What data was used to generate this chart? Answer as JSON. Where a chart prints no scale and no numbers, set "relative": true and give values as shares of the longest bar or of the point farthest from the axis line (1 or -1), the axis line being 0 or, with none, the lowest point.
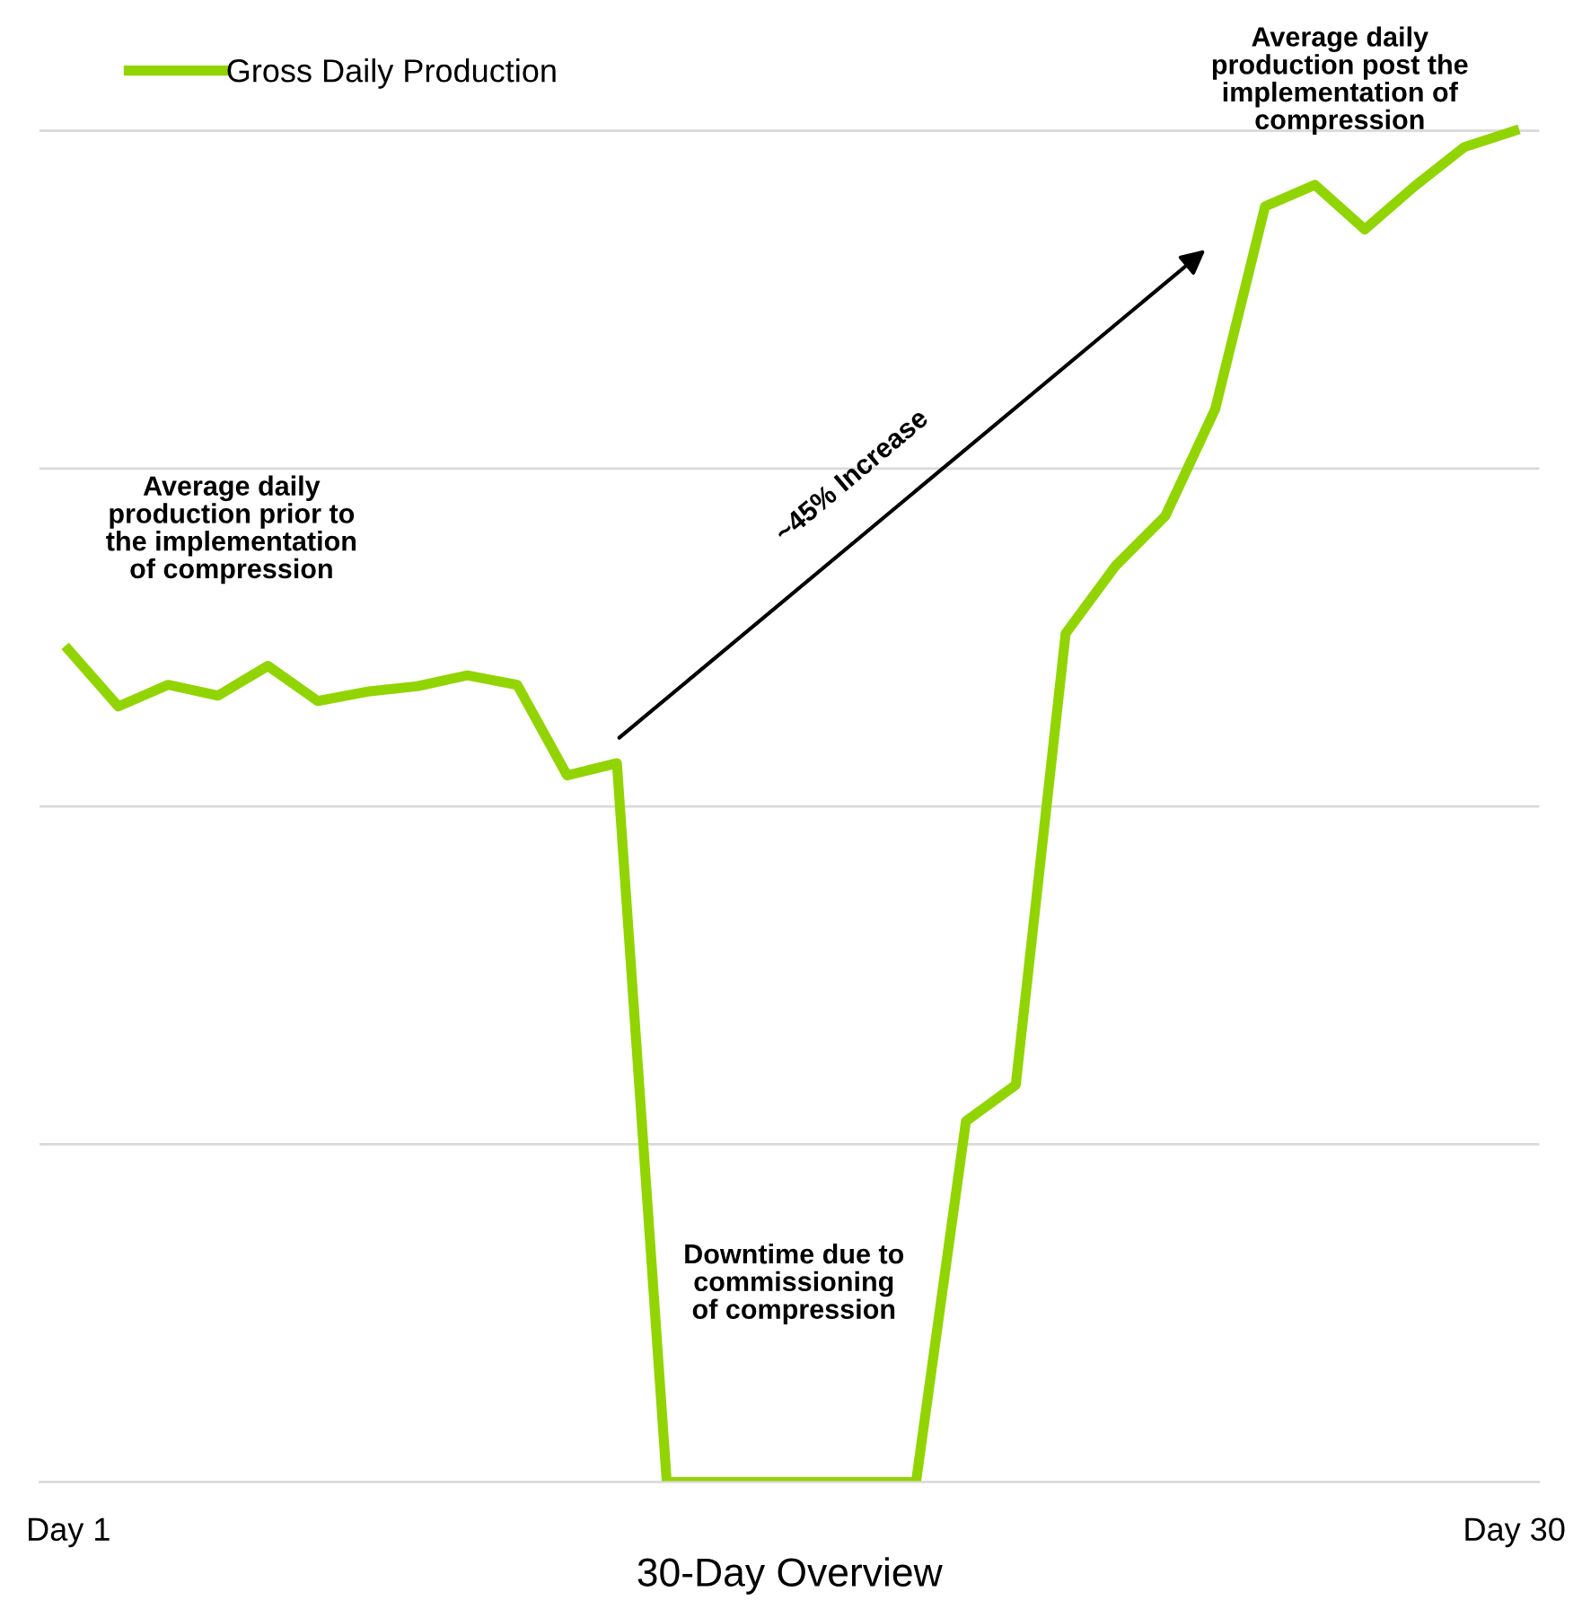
{
  "chart_data": {
    "type": "line",
    "relative": true,
    "xlabel": "30-Day Overview",
    "categories": [
      "Day 1",
      null,
      null,
      null,
      null,
      null,
      null,
      null,
      null,
      null,
      null,
      null,
      null,
      null,
      null,
      null,
      null,
      null,
      null,
      null,
      null,
      null,
      null,
      null,
      null,
      null,
      null,
      null,
      null,
      "Day 30"
    ],
    "series": [
      {
        "name": "Gross Daily Production",
        "color": "#92d400",
        "values": [
          0.616,
          0.574,
          0.59,
          0.582,
          0.604,
          0.578,
          0.585,
          0.589,
          0.597,
          0.59,
          0.523,
          0.532,
          0,
          0,
          0,
          0,
          0,
          0,
          0.267,
          0.294,
          0.628,
          0.678,
          0.715,
          0.794,
          0.944,
          0.96,
          0.927,
          0.959,
          0.988,
          1.0
        ]
      }
    ],
    "annotations": [
      "Average daily\nproduction prior to\nthe implementation\nof compression",
      "~45% Increase",
      "Average daily\nproduction post the\nimplementation of\ncompression",
      "Downtime due to\ncommissioning\nof compression"
    ],
    "legend": "top left",
    "grid": "y",
    "tick_labels": "x",
    "marker": "none",
    "line_style": "solid"
  }
}
